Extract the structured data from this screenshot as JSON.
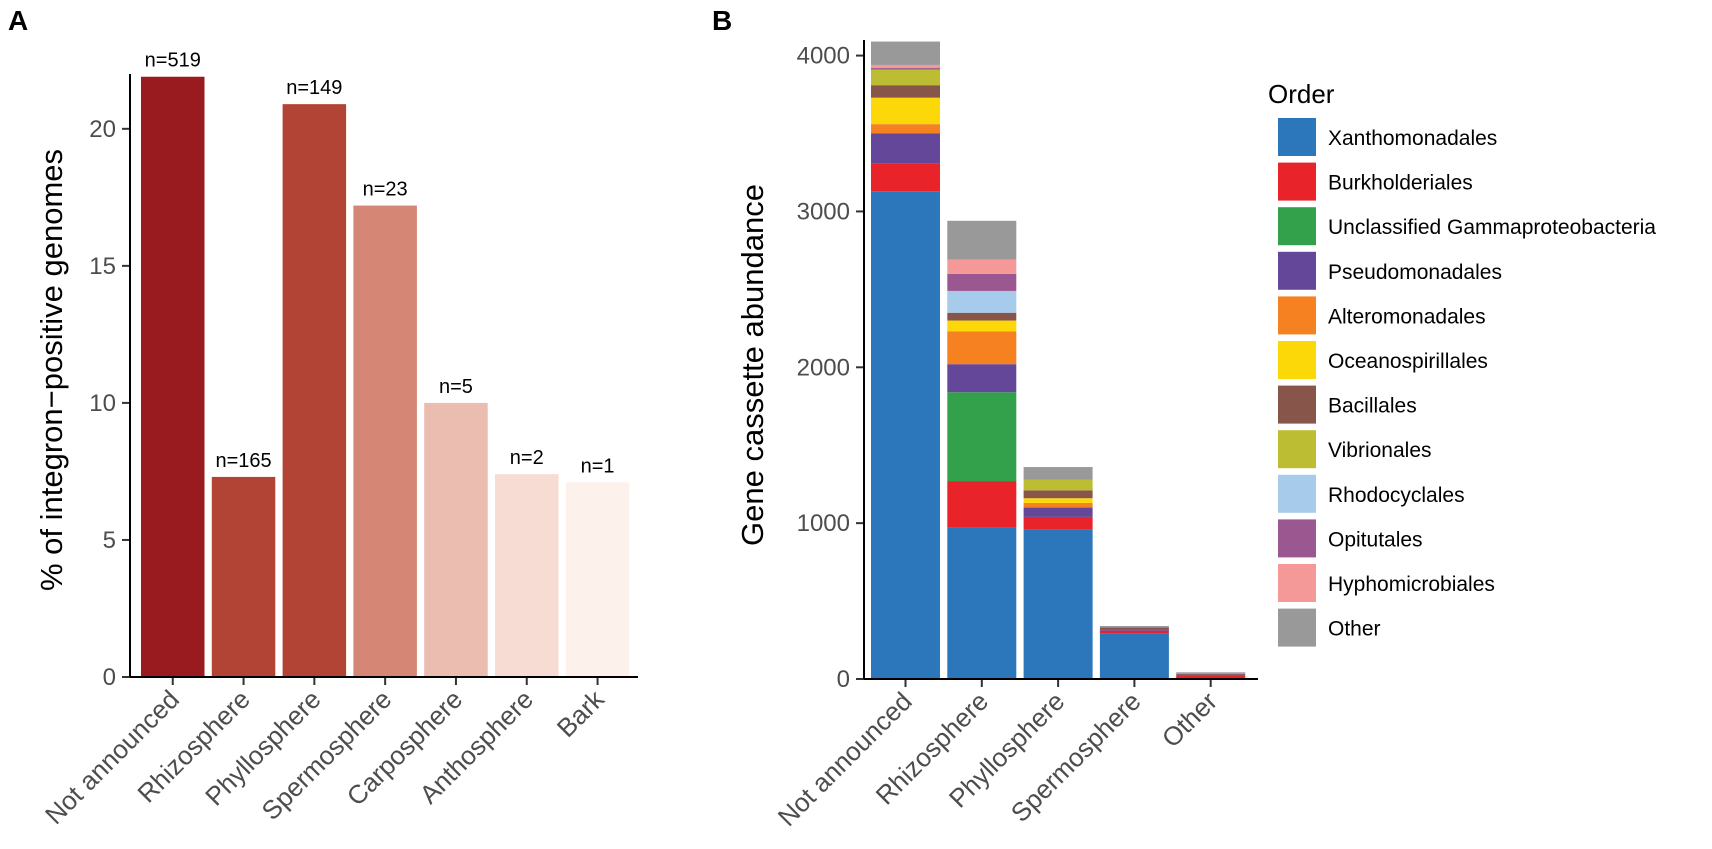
{
  "chart_data": [
    {
      "type": "bar",
      "panel": "A",
      "title": "",
      "xlabel": "",
      "ylabel": "% of integron−positive genomes",
      "ylim": [
        0,
        22
      ],
      "yticks": [
        0,
        5,
        10,
        15,
        20
      ],
      "categories": [
        "Not announced",
        "Rhizosphere",
        "Phyllosphere",
        "Spermosphere",
        "Carposphere",
        "Anthosphere",
        "Bark"
      ],
      "values": [
        21.9,
        7.3,
        20.9,
        17.2,
        10.0,
        7.4,
        7.1
      ],
      "bar_labels": [
        "n=519",
        "n=165",
        "n=149",
        "n=23",
        "n=5",
        "n=2",
        "n=1"
      ],
      "colors": [
        "#9a1b1f",
        "#b14434",
        "#b14434",
        "#d58675",
        "#ebbcb0",
        "#f6dcd3",
        "#fdf1ec"
      ]
    },
    {
      "type": "stacked-bar",
      "panel": "B",
      "title": "",
      "xlabel": "",
      "ylabel": "Gene cassette abundance",
      "ylim": [
        0,
        4100
      ],
      "yticks": [
        0,
        1000,
        2000,
        3000,
        4000
      ],
      "categories": [
        "Not announced",
        "Rhizosphere",
        "Phyllosphere",
        "Spermosphere",
        "Other"
      ],
      "legend_title": "Order",
      "legend_position": "right",
      "series": [
        {
          "name": "Xanthomonadales",
          "color": "#2c77bc",
          "values": [
            3130,
            970,
            960,
            290,
            5
          ]
        },
        {
          "name": "Burkholderiales",
          "color": "#e8232a",
          "values": [
            180,
            300,
            80,
            20,
            18
          ]
        },
        {
          "name": "Unclassified Gammaproteobacteria",
          "color": "#33a04b",
          "values": [
            0,
            570,
            0,
            0,
            0
          ]
        },
        {
          "name": "Pseudomonadales",
          "color": "#65479a",
          "values": [
            190,
            180,
            60,
            10,
            5
          ]
        },
        {
          "name": "Alteromonadales",
          "color": "#f58120",
          "values": [
            60,
            210,
            30,
            0,
            0
          ]
        },
        {
          "name": "Oceanospirillales",
          "color": "#fcd808",
          "values": [
            170,
            70,
            30,
            0,
            0
          ]
        },
        {
          "name": "Bacillales",
          "color": "#87554a",
          "values": [
            80,
            50,
            50,
            10,
            5
          ]
        },
        {
          "name": "Vibrionales",
          "color": "#bcbd33",
          "values": [
            100,
            0,
            70,
            0,
            0
          ]
        },
        {
          "name": "Rhodocyclales",
          "color": "#a6cbeb",
          "values": [
            0,
            140,
            0,
            0,
            0
          ]
        },
        {
          "name": "Opitutales",
          "color": "#9b578f",
          "values": [
            10,
            110,
            0,
            0,
            0
          ]
        },
        {
          "name": "Hyphomicrobiales",
          "color": "#f59998",
          "values": [
            20,
            90,
            0,
            0,
            0
          ]
        },
        {
          "name": "Other",
          "color": "#999999",
          "values": [
            150,
            250,
            80,
            10,
            10
          ]
        }
      ]
    }
  ]
}
